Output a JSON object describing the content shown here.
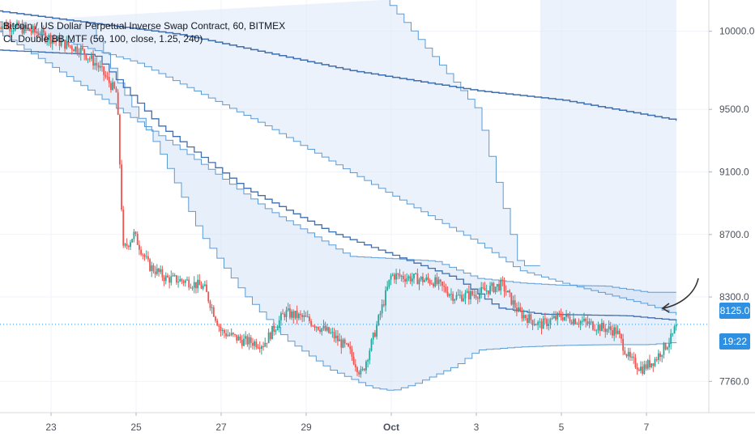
{
  "legend": {
    "symbol": "Bitcoin / US Dollar Perpetual Inverse Swap Contract, 60, BITMEX",
    "indicator": "CL Double BB MTF (50, 100, close, 1.25, 240)"
  },
  "price_tag": {
    "last_price": "8125.0",
    "countdown": "19:22"
  },
  "colors": {
    "up": "#26a69a",
    "down": "#ef5350",
    "band_line": "#5b9bd5",
    "band_fill": "#c9dcf3",
    "mid_line": "#3f6fb0",
    "tag": "#2f8fe0"
  },
  "chart_data": {
    "type": "candlestick",
    "title": "",
    "xlabel": "",
    "ylabel": "",
    "x_ticks": [
      "23",
      "25",
      "27",
      "29",
      "Oct",
      "3",
      "5",
      "7"
    ],
    "y_ticks": [
      "10000.0",
      "9500.0",
      "9100.0",
      "8700.0",
      "8300.0",
      "7760.0"
    ],
    "y_tick_values": [
      10000,
      9500,
      9100,
      8700,
      8300,
      7760
    ],
    "ylim": [
      7580,
      10220
    ],
    "x_day_range": [
      21.7,
      38.6
    ],
    "last_price": 8125,
    "price_path": [
      [
        21.7,
        10050
      ],
      [
        22.6,
        10000
      ],
      [
        23.2,
        9930
      ],
      [
        23.7,
        9880
      ],
      [
        24.1,
        9780
      ],
      [
        24.55,
        9600
      ],
      [
        24.7,
        8600
      ],
      [
        24.95,
        8700
      ],
      [
        25.3,
        8500
      ],
      [
        25.7,
        8420
      ],
      [
        26.2,
        8400
      ],
      [
        26.6,
        8360
      ],
      [
        27.0,
        8080
      ],
      [
        27.5,
        8020
      ],
      [
        28.0,
        8000
      ],
      [
        28.5,
        8200
      ],
      [
        29.0,
        8160
      ],
      [
        29.6,
        8060
      ],
      [
        30.0,
        7960
      ],
      [
        30.3,
        7800
      ],
      [
        30.6,
        8060
      ],
      [
        31.0,
        8440
      ],
      [
        31.5,
        8420
      ],
      [
        32.0,
        8400
      ],
      [
        32.5,
        8300
      ],
      [
        33.0,
        8320
      ],
      [
        33.6,
        8380
      ],
      [
        34.0,
        8200
      ],
      [
        34.5,
        8120
      ],
      [
        35.0,
        8180
      ],
      [
        35.5,
        8140
      ],
      [
        36.0,
        8100
      ],
      [
        36.3,
        8080
      ],
      [
        36.6,
        7900
      ],
      [
        36.9,
        7840
      ],
      [
        37.2,
        7900
      ],
      [
        37.6,
        8040
      ],
      [
        37.7,
        8125
      ]
    ],
    "bands": {
      "inner_upper": [
        [
          21.7,
          10000
        ],
        [
          24.0,
          9600
        ],
        [
          26.0,
          9250
        ],
        [
          28.0,
          8870
        ],
        [
          30.0,
          8560
        ],
        [
          32.0,
          8530
        ],
        [
          33.0,
          8420
        ],
        [
          34.0,
          8390
        ],
        [
          35.0,
          8375
        ],
        [
          36.0,
          8370
        ],
        [
          37.0,
          8330
        ],
        [
          37.7,
          8330
        ]
      ],
      "inner_lower": [
        [
          23.9,
          10050
        ],
        [
          24.6,
          9650
        ],
        [
          25.5,
          9250
        ],
        [
          26.5,
          8700
        ],
        [
          27.5,
          8320
        ],
        [
          28.5,
          8030
        ],
        [
          29.5,
          7840
        ],
        [
          30.5,
          7720
        ],
        [
          31.0,
          7700
        ],
        [
          31.5,
          7740
        ],
        [
          32.5,
          7860
        ],
        [
          33.0,
          7960
        ],
        [
          34.0,
          7980
        ],
        [
          35.0,
          7990
        ],
        [
          36.0,
          7995
        ],
        [
          37.0,
          7995
        ],
        [
          37.7,
          8010
        ]
      ],
      "inner_mid": [
        [
          21.7,
          9880
        ],
        [
          24.0,
          9850
        ],
        [
          25.5,
          9400
        ],
        [
          27.5,
          9000
        ],
        [
          29.5,
          8720
        ],
        [
          31.5,
          8520
        ],
        [
          32.5,
          8420
        ],
        [
          33.5,
          8230
        ],
        [
          34.5,
          8190
        ],
        [
          35.5,
          8185
        ],
        [
          36.5,
          8180
        ],
        [
          37.7,
          8150
        ]
      ],
      "outer_upper": [
        [
          30.8,
          10220
        ],
        [
          33.0,
          9500
        ],
        [
          33.8,
          8700
        ],
        [
          34.0,
          8500
        ],
        [
          34.5,
          8500
        ]
      ],
      "outer_mid": [
        [
          21.7,
          10130
        ],
        [
          26.0,
          9980
        ],
        [
          30.0,
          9750
        ],
        [
          33.0,
          9620
        ],
        [
          35.0,
          9560
        ],
        [
          37.7,
          9430
        ]
      ],
      "outer_lower": [
        [
          21.7,
          10060
        ],
        [
          25.0,
          9800
        ],
        [
          28.0,
          9400
        ],
        [
          30.0,
          9100
        ],
        [
          32.0,
          8800
        ],
        [
          33.0,
          8650
        ],
        [
          34.0,
          8470
        ],
        [
          35.0,
          8390
        ],
        [
          36.0,
          8320
        ],
        [
          37.0,
          8250
        ],
        [
          37.7,
          8185
        ]
      ]
    }
  }
}
